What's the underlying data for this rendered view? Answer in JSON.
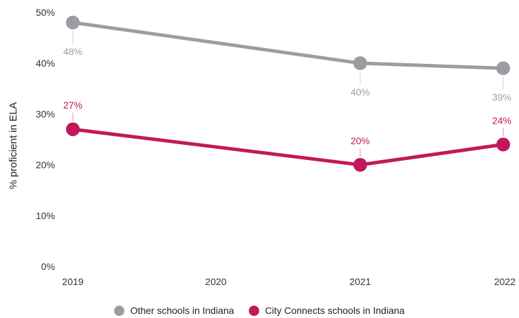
{
  "chart_data": {
    "type": "line",
    "x": [
      "2019",
      "2020",
      "2021",
      "2022"
    ],
    "ylabel": "% proficient in ELA",
    "xlabel": "",
    "ylim": [
      0,
      50
    ],
    "yticks": [
      "0%",
      "10%",
      "20%",
      "30%",
      "40%",
      "50%"
    ],
    "grid": false,
    "legend_position": "bottom",
    "series": [
      {
        "name": "Other schools in Indiana",
        "color": "#9a9da1",
        "points": [
          {
            "x": "2019",
            "y": 48,
            "label": "48%"
          },
          {
            "x": "2021",
            "y": 40,
            "label": "40%"
          },
          {
            "x": "2022",
            "y": 39,
            "label": "39%"
          }
        ]
      },
      {
        "name": "City Connects schools in Indiana",
        "color": "#c2185b",
        "points": [
          {
            "x": "2019",
            "y": 27,
            "label": "27%"
          },
          {
            "x": "2021",
            "y": 20,
            "label": "20%"
          },
          {
            "x": "2022",
            "y": 24,
            "label": "24%"
          }
        ]
      }
    ]
  }
}
